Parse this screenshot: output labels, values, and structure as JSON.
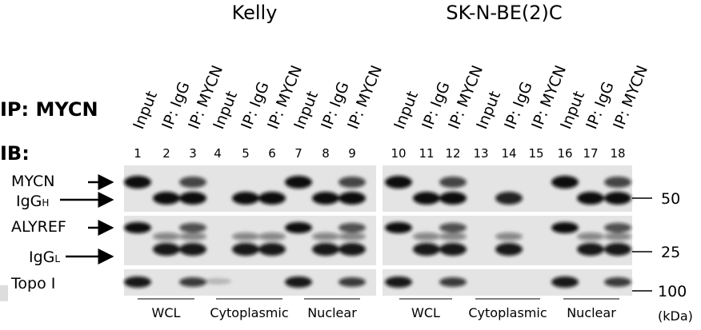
{
  "header": {
    "cell_lines": [
      "Kelly",
      "SK-N-BE(2)C"
    ],
    "ip_label": "IP: MYCN",
    "ib_label": "IB:"
  },
  "lanes": [
    {
      "number": 1,
      "label": "Input"
    },
    {
      "number": 2,
      "label": "IP: IgG"
    },
    {
      "number": 3,
      "label": "IP: MYCN"
    },
    {
      "number": 4,
      "label": "Input"
    },
    {
      "number": 5,
      "label": "IP: IgG"
    },
    {
      "number": 6,
      "label": "IP: MYCN"
    },
    {
      "number": 7,
      "label": "Input"
    },
    {
      "number": 8,
      "label": "IP: IgG"
    },
    {
      "number": 9,
      "label": "IP: MYCN"
    },
    {
      "number": 10,
      "label": "Input"
    },
    {
      "number": 11,
      "label": "IP: IgG"
    },
    {
      "number": 12,
      "label": "IP: MYCN"
    },
    {
      "number": 13,
      "label": "Input"
    },
    {
      "number": 14,
      "label": "IP: IgG"
    },
    {
      "number": 15,
      "label": "IP: MYCN"
    },
    {
      "number": 16,
      "label": "Input"
    },
    {
      "number": 17,
      "label": "IP: IgG"
    },
    {
      "number": 18,
      "label": "IP: MYCN"
    }
  ],
  "blot_rows": [
    {
      "label": "MYCN"
    },
    {
      "label": "IgG",
      "subscript": "H"
    },
    {
      "label": "ALYREF"
    },
    {
      "label": "IgG",
      "subscript": "L"
    },
    {
      "label": "Topo I"
    }
  ],
  "markers": [
    50,
    25,
    100
  ],
  "fractions": [
    "WCL",
    "Cytoplasmic",
    "Nuclear",
    "WCL",
    "Cytoplasmic",
    "Nuclear"
  ],
  "unit": "(kDa)"
}
